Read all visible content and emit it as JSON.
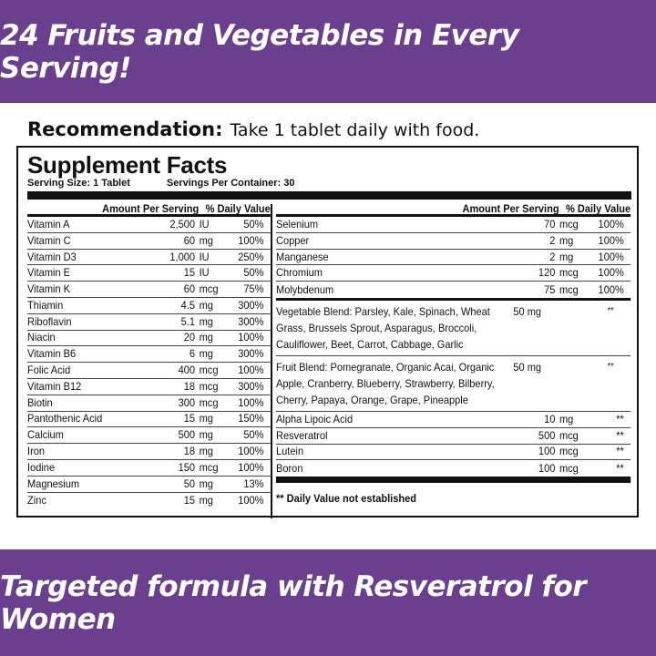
{
  "header": {
    "title": "24 Fruits and Vegetables in Every Serving!"
  },
  "footer": {
    "title": "Targeted formula with Resveratrol for Women"
  },
  "recommendation": {
    "label": "Recommendation:",
    "text": "Take 1 tablet daily with food."
  },
  "facts": {
    "title": "Supplement Facts",
    "serving_size": "Serving Size: 1 Tablet",
    "servings_per_container": "Servings Per Container: 30",
    "col_amount": "Amount Per Serving",
    "col_dv": "% Daily Value",
    "left": [
      [
        "Vitamin A",
        "2,500",
        "IU",
        "50%"
      ],
      [
        "Vitamin C",
        "60",
        "mg",
        "100%"
      ],
      [
        "Vitamin D3",
        "1,000",
        "IU",
        "250%"
      ],
      [
        "Vitamin E",
        "15",
        "IU",
        "50%"
      ],
      [
        "Vitamin K",
        "60",
        "mcg",
        "75%"
      ],
      [
        "Thiamin",
        "4.5",
        "mg",
        "300%"
      ],
      [
        "Riboflavin",
        "5.1",
        "mg",
        "300%"
      ],
      [
        "Niacin",
        "20",
        "mg",
        "100%"
      ],
      [
        "Vitamin B6",
        "6",
        "mg",
        "300%"
      ],
      [
        "Folic Acid",
        "400",
        "mcg",
        "100%"
      ],
      [
        "Vitamin B12",
        "18",
        "mcg",
        "300%"
      ],
      [
        "Biotin",
        "300",
        "mcg",
        "100%"
      ],
      [
        "Pantothenic Acid",
        "15",
        "mg",
        "150%"
      ],
      [
        "Calcium",
        "500",
        "mg",
        "50%"
      ],
      [
        "Iron",
        "18",
        "mg",
        "100%"
      ],
      [
        "Iodine",
        "150",
        "mcg",
        "100%"
      ],
      [
        "Magnesium",
        "50",
        "mg",
        "13%"
      ],
      [
        "Zinc",
        "15",
        "mg",
        "100%"
      ]
    ],
    "right_minerals": [
      [
        "Selenium",
        "70",
        "mcg",
        "100%"
      ],
      [
        "Copper",
        "2",
        "mg",
        "100%"
      ],
      [
        "Manganese",
        "2",
        "mg",
        "100%"
      ],
      [
        "Chromium",
        "120",
        "mcg",
        "100%"
      ],
      [
        "Molybdenum",
        "75",
        "mcg",
        "100%"
      ]
    ],
    "blends": [
      [
        "Vegetable Blend: Parsley, Kale, Spinach, Wheat Grass, Brussels Sprout, Asparagus, Broccoli, Cauliflower, Beet, Carrot, Cabbage, Garlic",
        "50 mg",
        "**"
      ],
      [
        "Fruit Blend: Pomegranate, Organic Acai, Organic Apple, Cranberry, Blueberry, Strawberry, Bilberry, Cherry, Papaya, Orange, Grape, Pineapple",
        "50 mg",
        "**"
      ]
    ],
    "others": [
      [
        "Alpha Lipoic Acid",
        "10",
        "mg",
        "**"
      ],
      [
        "Resveratrol",
        "500",
        "mcg",
        "**"
      ],
      [
        "Lutein",
        "100",
        "mcg",
        "**"
      ],
      [
        "Boron",
        "100",
        "mcg",
        "**"
      ]
    ],
    "footnote": "** Daily Value not established"
  },
  "colors": {
    "brand": "#6a3f8e"
  }
}
